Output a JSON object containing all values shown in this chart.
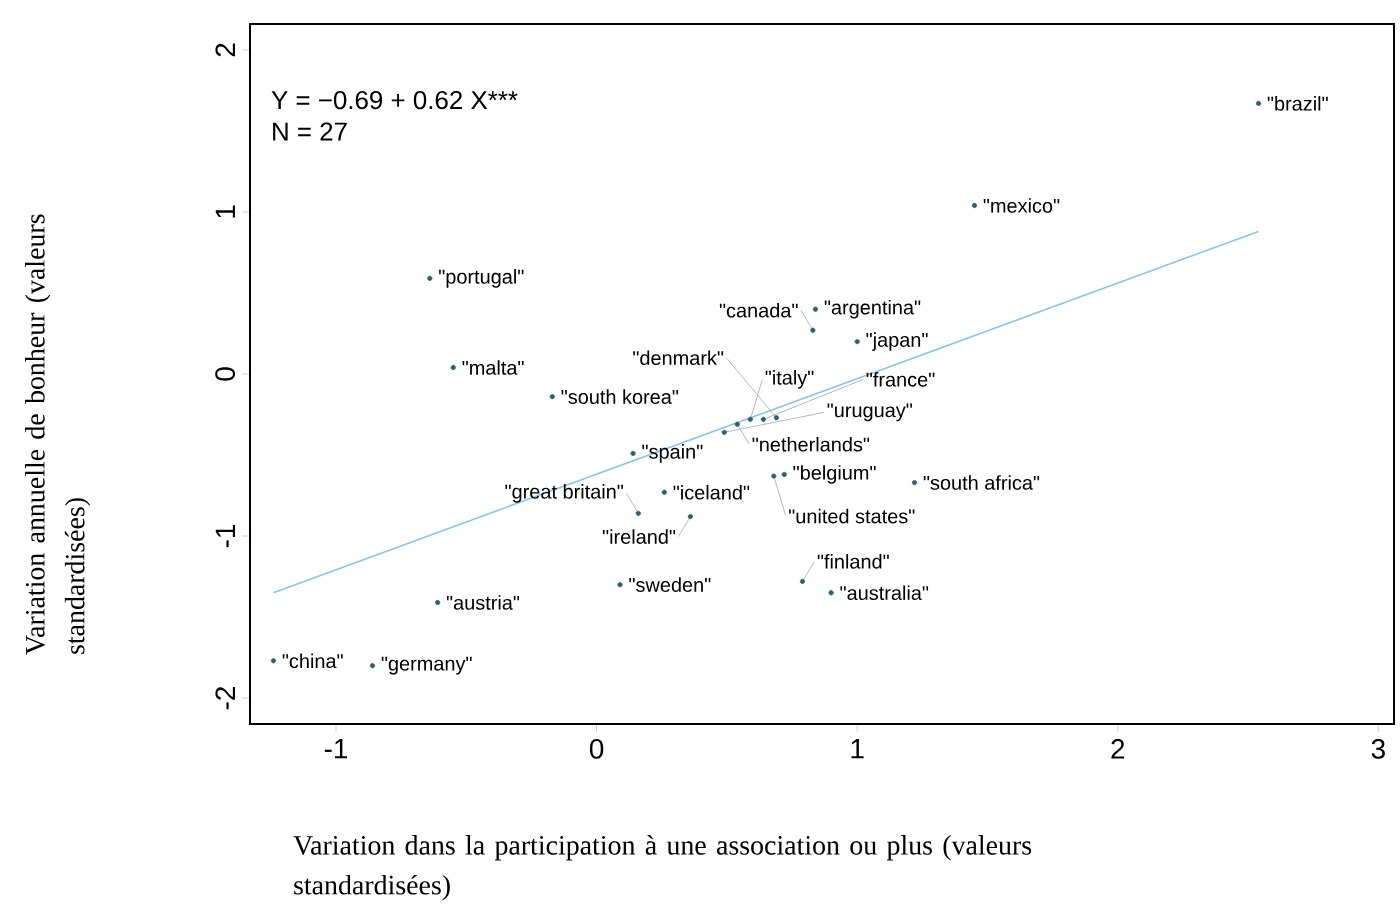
{
  "chart_data": {
    "type": "scatter",
    "xlabel": "Variation dans la participation à une association ou plus (valeurs standardisées)",
    "ylabel": "Variation annuelle de bonheur (valeurs standardisées)",
    "annotations": [
      "Y = −0.69 + 0.62 X***",
      "N = 27"
    ],
    "xlim": [
      -1.33,
      3.06
    ],
    "ylim": [
      -2.16,
      2.16
    ],
    "xticks": [
      -1,
      0,
      1,
      2,
      3
    ],
    "yticks": [
      -2,
      -1,
      0,
      1,
      2
    ],
    "grid": false,
    "legend": false,
    "marker": "circle",
    "series": [
      {
        "name": "\"brazil\"",
        "color": "#2f5f70",
        "x": [
          2.54
        ],
        "values": [
          1.67
        ]
      },
      {
        "name": "\"mexico\"",
        "color": "#2f5f70",
        "x": [
          1.45
        ],
        "values": [
          1.04
        ]
      },
      {
        "name": "\"portugal\"",
        "color": "#2f5f70",
        "x": [
          -0.64
        ],
        "values": [
          0.59
        ]
      },
      {
        "name": "\"argentina\"",
        "color": "#2f5f70",
        "x": [
          0.84
        ],
        "values": [
          0.4
        ]
      },
      {
        "name": "\"canada\"",
        "color": "#2f5f70",
        "x": [
          0.83
        ],
        "values": [
          0.27
        ]
      },
      {
        "name": "\"japan\"",
        "color": "#2f5f70",
        "x": [
          1.0
        ],
        "values": [
          0.2
        ]
      },
      {
        "name": "\"malta\"",
        "color": "#2f5f70",
        "x": [
          -0.55
        ],
        "values": [
          0.04
        ]
      },
      {
        "name": "\"south korea\"",
        "color": "#2f5f70",
        "x": [
          -0.17
        ],
        "values": [
          -0.14
        ]
      },
      {
        "name": "\"uruguay\"",
        "color": "#2f5f70",
        "x": [
          0.49
        ],
        "values": [
          -0.36
        ]
      },
      {
        "name": "\"netherlands\"",
        "color": "#2f5f70",
        "x": [
          0.54
        ],
        "values": [
          -0.31
        ]
      },
      {
        "name": "\"italy\"",
        "color": "#2f5f70",
        "x": [
          0.59
        ],
        "values": [
          -0.28
        ]
      },
      {
        "name": "\"france\"",
        "color": "#2f5f70",
        "x": [
          0.64
        ],
        "values": [
          -0.28
        ]
      },
      {
        "name": "\"denmark\"",
        "color": "#2f5f70",
        "x": [
          0.69
        ],
        "values": [
          -0.27
        ]
      },
      {
        "name": "\"spain\"",
        "color": "#2f5f70",
        "x": [
          0.14
        ],
        "values": [
          -0.49
        ]
      },
      {
        "name": "\"united states\"",
        "color": "#2f5f70",
        "x": [
          0.68
        ],
        "values": [
          -0.63
        ]
      },
      {
        "name": "\"belgium\"",
        "color": "#2f5f70",
        "x": [
          0.72
        ],
        "values": [
          -0.62
        ]
      },
      {
        "name": "\"south africa\"",
        "color": "#2f5f70",
        "x": [
          1.22
        ],
        "values": [
          -0.67
        ]
      },
      {
        "name": "\"iceland\"",
        "color": "#2f5f70",
        "x": [
          0.26
        ],
        "values": [
          -0.73
        ]
      },
      {
        "name": "\"great britain\"",
        "color": "#2f5f70",
        "x": [
          0.16
        ],
        "values": [
          -0.86
        ]
      },
      {
        "name": "\"ireland\"",
        "color": "#2f5f70",
        "x": [
          0.36
        ],
        "values": [
          -0.88
        ]
      },
      {
        "name": "\"sweden\"",
        "color": "#2f5f70",
        "x": [
          0.09
        ],
        "values": [
          -1.3
        ]
      },
      {
        "name": "\"finland\"",
        "color": "#2f5f70",
        "x": [
          0.79
        ],
        "values": [
          -1.28
        ]
      },
      {
        "name": "\"australia\"",
        "color": "#2f5f70",
        "x": [
          0.9
        ],
        "values": [
          -1.35
        ]
      },
      {
        "name": "\"austria\"",
        "color": "#2f5f70",
        "x": [
          -0.61
        ],
        "values": [
          -1.41
        ]
      },
      {
        "name": "\"china\"",
        "color": "#2f5f70",
        "x": [
          -1.24
        ],
        "values": [
          -1.77
        ]
      },
      {
        "name": "\"germany\"",
        "color": "#2f5f70",
        "x": [
          -0.86
        ],
        "values": [
          -1.8
        ]
      },
      {
        "type": "line",
        "color": "#8ec3e6",
        "marker": "none",
        "x": [
          -1.24,
          2.54
        ],
        "values": [
          -1.35,
          0.88
        ]
      }
    ]
  }
}
